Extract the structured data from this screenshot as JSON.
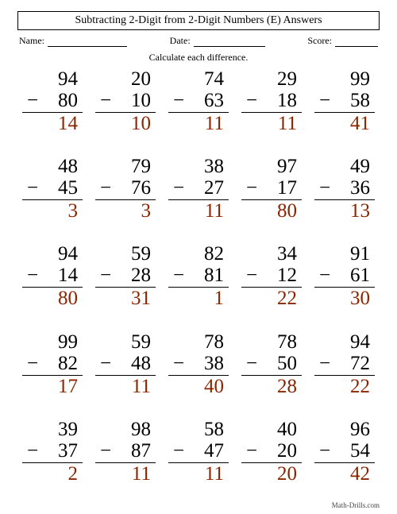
{
  "title": "Subtracting 2-Digit from 2-Digit Numbers (E) Answers",
  "labels": {
    "name": "Name:",
    "date": "Date:",
    "score": "Score:"
  },
  "instruction": "Calculate each difference.",
  "footer": "Math-Drills.com",
  "answerColor": "#8b2500",
  "minusSign": "−",
  "problems": [
    {
      "a": 94,
      "b": 80,
      "ans": 14
    },
    {
      "a": 20,
      "b": 10,
      "ans": 10
    },
    {
      "a": 74,
      "b": 63,
      "ans": 11
    },
    {
      "a": 29,
      "b": 18,
      "ans": 11
    },
    {
      "a": 99,
      "b": 58,
      "ans": 41
    },
    {
      "a": 48,
      "b": 45,
      "ans": 3
    },
    {
      "a": 79,
      "b": 76,
      "ans": 3
    },
    {
      "a": 38,
      "b": 27,
      "ans": 11
    },
    {
      "a": 97,
      "b": 17,
      "ans": 80
    },
    {
      "a": 49,
      "b": 36,
      "ans": 13
    },
    {
      "a": 94,
      "b": 14,
      "ans": 80
    },
    {
      "a": 59,
      "b": 28,
      "ans": 31
    },
    {
      "a": 82,
      "b": 81,
      "ans": 1
    },
    {
      "a": 34,
      "b": 12,
      "ans": 22
    },
    {
      "a": 91,
      "b": 61,
      "ans": 30
    },
    {
      "a": 99,
      "b": 82,
      "ans": 17
    },
    {
      "a": 59,
      "b": 48,
      "ans": 11
    },
    {
      "a": 78,
      "b": 38,
      "ans": 40
    },
    {
      "a": 78,
      "b": 50,
      "ans": 28
    },
    {
      "a": 94,
      "b": 72,
      "ans": 22
    },
    {
      "a": 39,
      "b": 37,
      "ans": 2
    },
    {
      "a": 98,
      "b": 87,
      "ans": 11
    },
    {
      "a": 58,
      "b": 47,
      "ans": 11
    },
    {
      "a": 40,
      "b": 20,
      "ans": 20
    },
    {
      "a": 96,
      "b": 54,
      "ans": 42
    }
  ]
}
